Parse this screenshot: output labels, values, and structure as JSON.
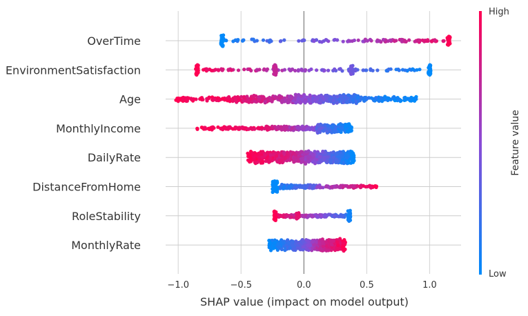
{
  "chart_data": {
    "type": "scatter",
    "subtype": "shap-beeswarm",
    "title": "",
    "xlabel": "SHAP value (impact on model output)",
    "xlim": [
      -1.1,
      1.25
    ],
    "xticks": [
      -1.0,
      -0.5,
      0.0,
      0.5,
      1.0
    ],
    "xtick_labels": [
      "−1.0",
      "−0.5",
      "0.0",
      "0.5",
      "1.0"
    ],
    "grid": "vertical",
    "features": [
      {
        "name": "OverTime",
        "min": -0.65,
        "max": 1.15,
        "clusters": [
          {
            "x": -0.65,
            "spread": 0.012,
            "width": 0.42,
            "value": 0.0,
            "n": 30
          },
          {
            "x": 1.15,
            "spread": 0.012,
            "width": 0.32,
            "value": 1.0,
            "n": 26
          }
        ],
        "tail": {
          "from": -0.62,
          "to": 1.12,
          "v_from": 0.1,
          "v_to": 0.9,
          "n": 120,
          "width": 0.12
        }
      },
      {
        "name": "EnvironmentSatisfaction",
        "min": -0.85,
        "max": 1.0,
        "clusters": [
          {
            "x": -0.85,
            "spread": 0.01,
            "width": 0.38,
            "value": 1.0,
            "n": 26
          },
          {
            "x": -0.23,
            "spread": 0.01,
            "width": 0.38,
            "value": 0.75,
            "n": 26
          },
          {
            "x": 0.38,
            "spread": 0.01,
            "width": 0.32,
            "value": 0.4,
            "n": 22
          },
          {
            "x": 1.0,
            "spread": 0.01,
            "width": 0.38,
            "value": 0.0,
            "n": 26
          }
        ],
        "tail": {
          "from": -0.8,
          "to": 0.95,
          "v_from": 0.95,
          "v_to": 0.05,
          "n": 110,
          "width": 0.1
        }
      },
      {
        "name": "Age",
        "min": -1.02,
        "max": 0.9,
        "bands": [
          {
            "from": -1.02,
            "to": -0.6,
            "v_from": 1.0,
            "v_to": 0.95,
            "n": 70,
            "width": 0.18
          },
          {
            "from": -0.6,
            "to": -0.1,
            "v_from": 0.95,
            "v_to": 0.65,
            "n": 160,
            "width": 0.32
          },
          {
            "from": -0.1,
            "to": 0.45,
            "v_from": 0.6,
            "v_to": 0.15,
            "n": 260,
            "width": 0.42
          },
          {
            "from": 0.45,
            "to": 0.9,
            "v_from": 0.15,
            "v_to": 0.0,
            "n": 90,
            "width": 0.22
          }
        ]
      },
      {
        "name": "MonthlyIncome",
        "min": -0.85,
        "max": 0.38,
        "bands": [
          {
            "from": -0.85,
            "to": -0.3,
            "v_from": 1.0,
            "v_to": 0.9,
            "n": 90,
            "width": 0.13
          },
          {
            "from": -0.3,
            "to": 0.1,
            "v_from": 0.85,
            "v_to": 0.45,
            "n": 140,
            "width": 0.18
          },
          {
            "from": 0.1,
            "to": 0.38,
            "v_from": 0.35,
            "v_to": 0.0,
            "n": 200,
            "width": 0.42
          }
        ]
      },
      {
        "name": "DailyRate",
        "min": -0.45,
        "max": 0.4,
        "bands": [
          {
            "from": -0.45,
            "to": -0.1,
            "v_from": 1.0,
            "v_to": 0.8,
            "n": 260,
            "width": 0.55
          },
          {
            "from": -0.1,
            "to": 0.15,
            "v_from": 0.8,
            "v_to": 0.4,
            "n": 240,
            "width": 0.55
          },
          {
            "from": 0.15,
            "to": 0.4,
            "v_from": 0.4,
            "v_to": 0.0,
            "n": 240,
            "width": 0.55
          }
        ]
      },
      {
        "name": "DistanceFromHome",
        "min": -0.25,
        "max": 0.58,
        "clusters": [
          {
            "x": -0.23,
            "spread": 0.02,
            "width": 0.42,
            "value": 0.0,
            "n": 50
          }
        ],
        "bands": [
          {
            "from": -0.2,
            "to": 0.1,
            "v_from": 0.1,
            "v_to": 0.35,
            "n": 100,
            "width": 0.2
          },
          {
            "from": 0.1,
            "to": 0.58,
            "v_from": 0.5,
            "v_to": 1.0,
            "n": 80,
            "width": 0.12
          }
        ]
      },
      {
        "name": "RoleStability",
        "min": -0.23,
        "max": 0.36,
        "clusters": [
          {
            "x": -0.23,
            "spread": 0.01,
            "width": 0.35,
            "value": 1.0,
            "n": 24
          },
          {
            "x": -0.05,
            "spread": 0.01,
            "width": 0.22,
            "value": 0.9,
            "n": 14
          },
          {
            "x": 0.36,
            "spread": 0.01,
            "width": 0.4,
            "value": 0.05,
            "n": 26
          }
        ],
        "bands": [
          {
            "from": -0.22,
            "to": 0.34,
            "v_from": 0.95,
            "v_to": 0.2,
            "n": 150,
            "width": 0.14
          }
        ]
      },
      {
        "name": "MonthlyRate",
        "min": -0.28,
        "max": 0.33,
        "bands": [
          {
            "from": -0.28,
            "to": -0.05,
            "v_from": 0.0,
            "v_to": 0.3,
            "n": 200,
            "width": 0.5
          },
          {
            "from": -0.05,
            "to": 0.12,
            "v_from": 0.3,
            "v_to": 0.7,
            "n": 200,
            "width": 0.5
          },
          {
            "from": 0.12,
            "to": 0.33,
            "v_from": 0.7,
            "v_to": 1.0,
            "n": 220,
            "width": 0.55
          }
        ]
      }
    ],
    "colorbar": {
      "label": "Feature value",
      "high_label": "High",
      "low_label": "Low",
      "low_color": "#008bfb",
      "mid_color": "#8a4bd6",
      "high_color": "#ff0052"
    }
  }
}
